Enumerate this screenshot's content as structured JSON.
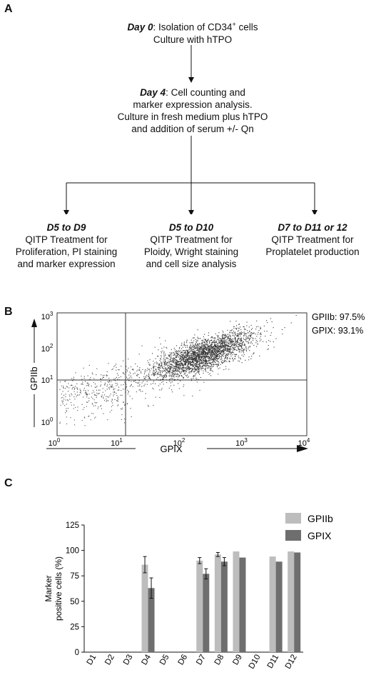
{
  "panels": {
    "a": "A",
    "b": "B",
    "c": "C"
  },
  "flow": {
    "top": {
      "day": "Day 0",
      "line1_rest": ": Isolation of CD34",
      "sup": "+",
      "line1_tail": " cells",
      "line2": "Culture with hTPO"
    },
    "mid": {
      "day": "Day 4",
      "line1_rest": ": Cell counting and",
      "line2": "marker expression analysis.",
      "line3": "Culture in fresh medium plus hTPO",
      "line4": "and addition of serum +/- Qn"
    },
    "branches": [
      {
        "title": "D5 to D9",
        "line1": "QITP Treatment for",
        "line2": "Proliferation, PI staining",
        "line3": "and marker expression"
      },
      {
        "title": "D5 to D10",
        "line1": "QITP Treatment for",
        "line2": "Ploidy, Wright staining",
        "line3": "and cell size analysis"
      },
      {
        "title": "D7 to D11 or 12",
        "line1": "QITP Treatment for",
        "line2": "Proplatelet production",
        "line3": ""
      }
    ]
  },
  "flow_plot": {
    "xlabel": "GPIX",
    "ylabel": "GPIIb",
    "x_ticks": [
      {
        "base": "10",
        "exp": "0"
      },
      {
        "base": "10",
        "exp": "1"
      },
      {
        "base": "10",
        "exp": "2"
      },
      {
        "base": "10",
        "exp": "3"
      },
      {
        "base": "10",
        "exp": "4"
      }
    ],
    "y_ticks": [
      {
        "base": "10",
        "exp": "0"
      },
      {
        "base": "10",
        "exp": "1"
      },
      {
        "base": "10",
        "exp": "2"
      },
      {
        "base": "10",
        "exp": "3"
      }
    ],
    "stats": [
      "GPIIb: 97.5%",
      "GPIX: 93.1%"
    ]
  },
  "chart_data": {
    "type": "bar",
    "ylabel": "Marker positive cells (%)",
    "ylabel_line1": "Marker",
    "ylabel_line2": "positive cells (%)",
    "ylim": [
      0,
      125
    ],
    "yticks": [
      0,
      25,
      50,
      75,
      100,
      125
    ],
    "categories": [
      "D1",
      "D2",
      "D3",
      "D4",
      "D5",
      "D6",
      "D7",
      "D8",
      "D9",
      "D10",
      "D11",
      "D12"
    ],
    "legend_position": "top-right",
    "series": [
      {
        "name": "GPIIb",
        "color": "#bdbdbd",
        "values": [
          null,
          null,
          null,
          86,
          null,
          null,
          90,
          96,
          99,
          null,
          94,
          99
        ],
        "errors": [
          null,
          null,
          null,
          8,
          null,
          null,
          3,
          2,
          null,
          null,
          null,
          null
        ]
      },
      {
        "name": "GPIX",
        "color": "#6e6e6e",
        "values": [
          null,
          null,
          null,
          63,
          null,
          null,
          77,
          89,
          93,
          null,
          89,
          98
        ],
        "errors": [
          null,
          null,
          null,
          10,
          null,
          null,
          5,
          4,
          null,
          null,
          null,
          null
        ]
      }
    ]
  }
}
